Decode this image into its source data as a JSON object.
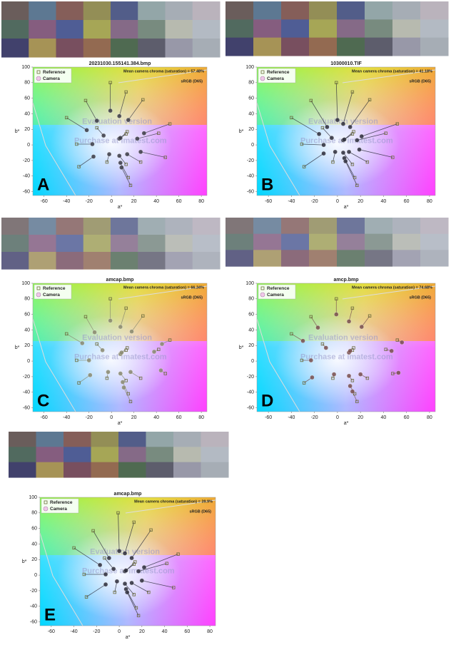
{
  "chart_data": [
    {
      "type": "scatter",
      "label": "A",
      "title": "20231030.155141.384.bmp",
      "subtitle": "Mean camera chroma (saturation) = 57.48%",
      "note": "sRGB (D65)",
      "xlabel": "a*",
      "ylabel": "b*",
      "annotations": [
        "Evaluation version",
        "Purchase at imatest.com"
      ],
      "xlim": [
        -70,
        85
      ],
      "ylim": [
        -65,
        100
      ],
      "xticks": [
        -60,
        -40,
        -20,
        0,
        20,
        40,
        60,
        80
      ],
      "yticks": [
        -60,
        -40,
        -20,
        0,
        20,
        40,
        60,
        80,
        100
      ],
      "series": [
        {
          "name": "Reference",
          "color": "#6b6b3a",
          "x": [
            13,
            14,
            -4,
            -13,
            13,
            -31,
            28,
            15,
            42,
            26,
            -23,
            13,
            17,
            -40,
            52,
            -1,
            48,
            -29
          ],
          "values": [
            14,
            17,
            -22,
            22,
            -25,
            1,
            58,
            -42,
            15,
            -22,
            57,
            68,
            -52,
            35,
            27,
            80,
            -16,
            -28
          ]
        },
        {
          "name": "Camera",
          "color": "#3c3c46",
          "x": [
            7,
            8,
            -2,
            -7,
            7,
            -17,
            15,
            8,
            23,
            14,
            -13,
            7,
            9,
            -22,
            29,
            -1,
            26,
            -16
          ],
          "values": [
            8,
            9,
            -12,
            12,
            -14,
            1,
            32,
            -23,
            8,
            -12,
            31,
            37,
            -29,
            19,
            15,
            44,
            -9,
            -15
          ]
        }
      ]
    },
    {
      "type": "scatter",
      "label": "B",
      "title": "10300010.TIF",
      "subtitle": "Mean camera chroma (saturation) = 41.18%",
      "note": "sRGB (D65)",
      "xlabel": "a*",
      "ylabel": "b*",
      "annotations": [
        "Evaluation version",
        "Purchase at imatest.com"
      ],
      "xlim": [
        -70,
        85
      ],
      "ylim": [
        -65,
        100
      ],
      "xticks": [
        -60,
        -40,
        -20,
        0,
        20,
        40,
        60,
        80
      ],
      "yticks": [
        -60,
        -40,
        -20,
        0,
        20,
        40,
        60,
        80,
        100
      ],
      "series": [
        {
          "name": "Reference",
          "color": "#6b6b3a",
          "x": [
            13,
            14,
            -4,
            -13,
            13,
            -31,
            28,
            15,
            42,
            26,
            -23,
            13,
            17,
            -40,
            52,
            -1,
            48,
            -29
          ],
          "values": [
            14,
            17,
            -22,
            22,
            -25,
            1,
            58,
            -42,
            15,
            -22,
            57,
            68,
            -52,
            35,
            27,
            80,
            -16,
            -28
          ]
        },
        {
          "name": "Camera",
          "color": "#2e2e3c",
          "x": [
            5,
            6,
            -2,
            -5,
            5,
            -12,
            11,
            6,
            17,
            10,
            -9,
            5,
            7,
            -16,
            21,
            0,
            19,
            -12
          ],
          "values": [
            6,
            7,
            -9,
            9,
            -10,
            0,
            23,
            -17,
            6,
            -9,
            23,
            27,
            -21,
            14,
            11,
            32,
            -6,
            -11
          ]
        }
      ]
    },
    {
      "type": "scatter",
      "label": "C",
      "title": "amcap.bmp",
      "subtitle": "Mean camera chroma (saturation) = 66.34%",
      "note": "sRGB (D65)",
      "xlabel": "a*",
      "ylabel": "b*",
      "annotations": [
        "Evaluation version",
        "Purchase at imatest.com"
      ],
      "xlim": [
        -70,
        85
      ],
      "ylim": [
        -65,
        100
      ],
      "xticks": [
        -60,
        -40,
        -20,
        0,
        20,
        40,
        60,
        80
      ],
      "yticks": [
        -60,
        -40,
        -20,
        0,
        20,
        40,
        60,
        80,
        100
      ],
      "series": [
        {
          "name": "Reference",
          "color": "#6b6b3a",
          "x": [
            13,
            14,
            -4,
            -13,
            13,
            -31,
            28,
            15,
            42,
            26,
            -23,
            13,
            17,
            -40,
            52,
            -1,
            48,
            -29
          ],
          "values": [
            14,
            17,
            -22,
            22,
            -25,
            1,
            58,
            -42,
            15,
            -22,
            57,
            68,
            -52,
            35,
            27,
            80,
            -16,
            -28
          ]
        },
        {
          "name": "Camera",
          "color": "#8a8a70",
          "x": [
            8,
            9,
            -3,
            -8,
            8,
            -20,
            18,
            10,
            38,
            17,
            -15,
            8,
            11,
            -26,
            45,
            -1,
            44,
            -19
          ],
          "values": [
            9,
            11,
            -14,
            14,
            -16,
            1,
            38,
            -27,
            12,
            -14,
            37,
            44,
            -34,
            23,
            22,
            52,
            -12,
            -18
          ]
        }
      ]
    },
    {
      "type": "scatter",
      "label": "D",
      "title": "amcp.bmp",
      "subtitle": "Mean camera chroma (saturation) = 74.68%",
      "note": "sRGB (D65)",
      "xlabel": "a*",
      "ylabel": "b*",
      "annotations": [
        "Evaluation version",
        "Purchase at imatest.com"
      ],
      "xlim": [
        -70,
        85
      ],
      "ylim": [
        -65,
        100
      ],
      "xticks": [
        -60,
        -40,
        -20,
        0,
        20,
        40,
        60,
        80
      ],
      "yticks": [
        -60,
        -40,
        -20,
        0,
        20,
        40,
        60,
        80,
        100
      ],
      "series": [
        {
          "name": "Reference",
          "color": "#6b6b3a",
          "x": [
            13,
            14,
            -4,
            -13,
            13,
            -31,
            28,
            15,
            42,
            26,
            -23,
            13,
            17,
            -40,
            52,
            -1,
            48,
            -29
          ],
          "values": [
            14,
            17,
            -22,
            22,
            -25,
            1,
            58,
            -42,
            15,
            -22,
            57,
            68,
            -52,
            35,
            27,
            80,
            -16,
            -28
          ]
        },
        {
          "name": "Camera",
          "color": "#7a5050",
          "x": [
            10,
            11,
            -3,
            -10,
            10,
            -23,
            21,
            11,
            47,
            20,
            -17,
            10,
            13,
            -30,
            56,
            -1,
            53,
            -22
          ],
          "values": [
            11,
            13,
            -17,
            17,
            -19,
            1,
            44,
            -32,
            13,
            -17,
            43,
            51,
            -39,
            26,
            24,
            60,
            -15,
            -21
          ]
        }
      ]
    },
    {
      "type": "scatter",
      "label": "E",
      "title": "amcap.bmp",
      "subtitle": "Mean camera chroma (saturation) = 39.9%",
      "note": "sRGB (D65)",
      "xlabel": "a*",
      "ylabel": "b*",
      "annotations": [
        "Evaluation version",
        "Purchase at imatest.com"
      ],
      "xlim": [
        -70,
        85
      ],
      "ylim": [
        -65,
        100
      ],
      "xticks": [
        -60,
        -40,
        -20,
        0,
        20,
        40,
        60,
        80
      ],
      "yticks": [
        -60,
        -40,
        -20,
        0,
        20,
        40,
        60,
        80,
        100
      ],
      "series": [
        {
          "name": "Reference",
          "color": "#6b6b3a",
          "x": [
            13,
            14,
            -4,
            -13,
            13,
            -31,
            28,
            15,
            42,
            26,
            -23,
            13,
            17,
            -40,
            52,
            -1,
            48,
            -29
          ],
          "values": [
            14,
            17,
            -22,
            22,
            -25,
            1,
            58,
            -42,
            15,
            -22,
            57,
            68,
            -52,
            35,
            27,
            80,
            -16,
            -28
          ]
        },
        {
          "name": "Camera",
          "color": "#2e2e3c",
          "x": [
            5,
            6,
            -2,
            -5,
            5,
            -12,
            11,
            6,
            17,
            11,
            -9,
            5,
            7,
            -17,
            22,
            0,
            20,
            -12
          ],
          "values": [
            5,
            6,
            -8,
            8,
            -11,
            1,
            22,
            -18,
            5,
            -10,
            22,
            28,
            -22,
            13,
            10,
            31,
            -7,
            -12
          ]
        }
      ]
    }
  ]
}
